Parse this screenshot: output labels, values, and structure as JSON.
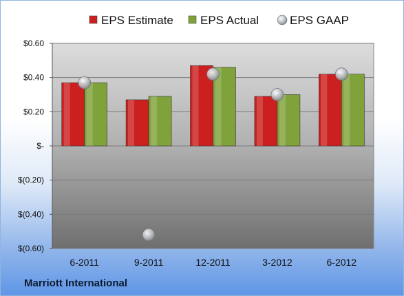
{
  "chart_data": {
    "type": "bar",
    "categories": [
      "6-2011",
      "9-2011",
      "12-2011",
      "3-2012",
      "6-2012"
    ],
    "series": [
      {
        "name": "EPS Estimate",
        "kind": "bar",
        "color": "#cc1f1f",
        "values": [
          0.37,
          0.27,
          0.47,
          0.29,
          0.42
        ]
      },
      {
        "name": "EPS Actual",
        "kind": "bar",
        "color": "#7fa23a",
        "values": [
          0.37,
          0.29,
          0.46,
          0.3,
          0.42
        ]
      },
      {
        "name": "EPS GAAP",
        "kind": "point",
        "color": "#a8adb4",
        "values": [
          0.37,
          -0.52,
          0.42,
          0.3,
          0.42
        ]
      }
    ],
    "yticks": [
      0.6,
      0.4,
      0.2,
      0,
      -0.2,
      -0.4,
      -0.6
    ],
    "ytick_labels": [
      "$0.60",
      "$0.40",
      "$0.20",
      "$-",
      "$(0.20)",
      "$(0.40)",
      "$(0.60)"
    ],
    "ylim": [
      -0.6,
      0.6
    ],
    "grid": true,
    "legend_position": "top-center"
  },
  "footer": {
    "company": "Marriott International"
  }
}
